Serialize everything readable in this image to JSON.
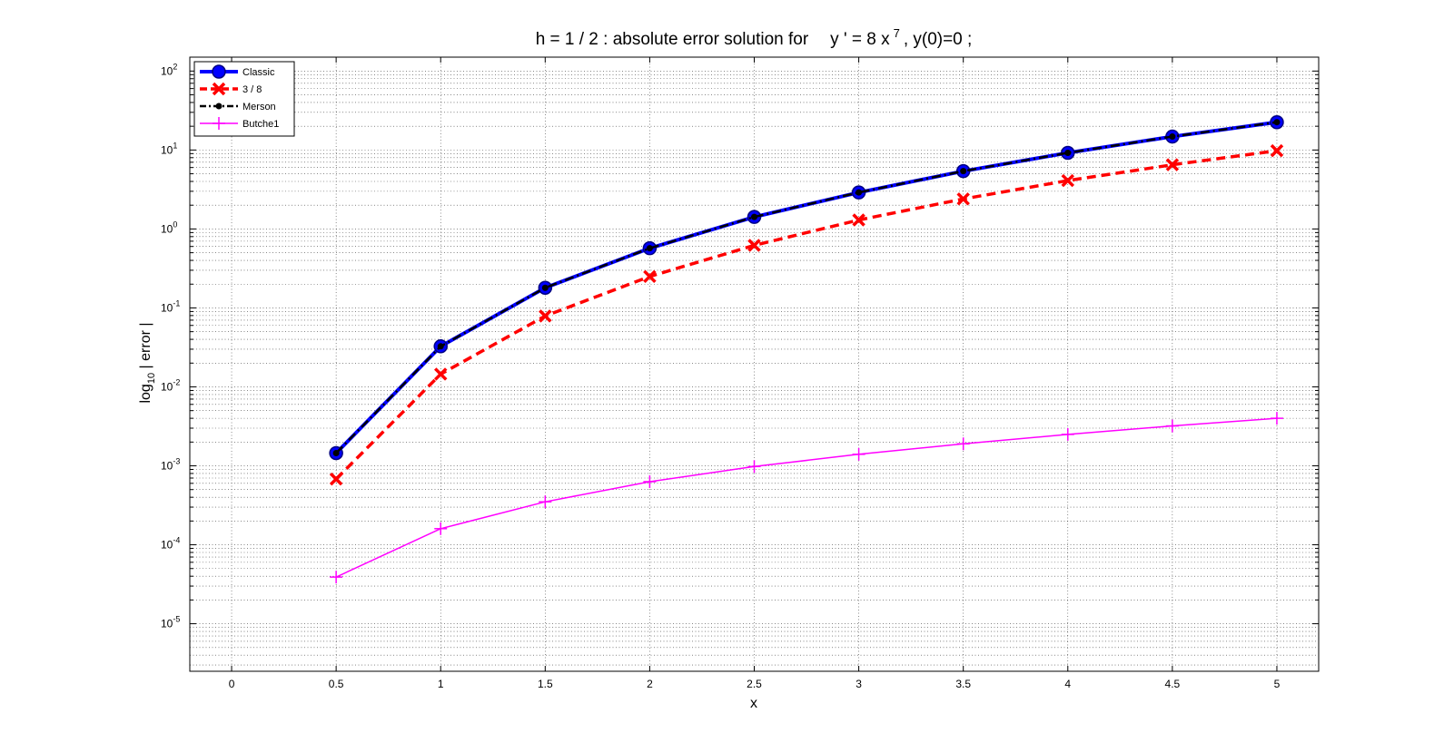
{
  "chart_data": {
    "type": "line",
    "title": "h = 1 / 2 :    absolute error solution for",
    "title_equation": {
      "lhs": "y ' = 8 x",
      "exponent": "7",
      "rest": ",   y(0)=0 ;"
    },
    "xlabel": "x",
    "ylabel": {
      "prefix": "log",
      "subscript": "10",
      "suffix": " | error |"
    },
    "x_scale": "linear",
    "y_scale": "log",
    "xlim": [
      -0.2,
      5.2
    ],
    "ylim": [
      2.5e-06,
      150
    ],
    "x_ticks": [
      "0",
      "0.5",
      "1",
      "1.5",
      "2",
      "2.5",
      "3",
      "3.5",
      "4",
      "4.5",
      "5"
    ],
    "y_ticks": [
      {
        "base": "10",
        "exp": "-5"
      },
      {
        "base": "10",
        "exp": "-4"
      },
      {
        "base": "10",
        "exp": "-3"
      },
      {
        "base": "10",
        "exp": "-2"
      },
      {
        "base": "10",
        "exp": "-1"
      },
      {
        "base": "10",
        "exp": "0"
      },
      {
        "base": "10",
        "exp": "1"
      },
      {
        "base": "10",
        "exp": "2"
      }
    ],
    "grid": true,
    "legend_position": "top-left",
    "x": [
      0.5,
      1,
      1.5,
      2,
      2.5,
      3,
      3.5,
      4,
      4.5,
      5
    ],
    "series": [
      {
        "name": "Classic",
        "color": "#0000ff",
        "dash": "solid",
        "marker": "circle",
        "values": [
          0.00145,
          0.0326,
          0.18,
          0.57,
          1.42,
          2.9,
          5.4,
          9.2,
          14.8,
          22.5
        ]
      },
      {
        "name": " 3 / 8",
        "color": "#ff0000",
        "dash": "dashed",
        "marker": "x",
        "values": [
          0.00068,
          0.0145,
          0.079,
          0.25,
          0.62,
          1.3,
          2.4,
          4.1,
          6.5,
          9.8
        ]
      },
      {
        "name": "Merson",
        "color": "#000000",
        "dash": "dashdot",
        "marker": "dot",
        "values": [
          0.00145,
          0.0326,
          0.18,
          0.57,
          1.42,
          2.9,
          5.4,
          9.2,
          14.8,
          22.5
        ]
      },
      {
        "name": "Butche1",
        "color": "#ff00ff",
        "dash": "solid",
        "marker": "plus",
        "values": [
          3.9e-05,
          0.00016,
          0.00035,
          0.00063,
          0.00098,
          0.0014,
          0.0019,
          0.0025,
          0.0032,
          0.004
        ]
      }
    ]
  }
}
